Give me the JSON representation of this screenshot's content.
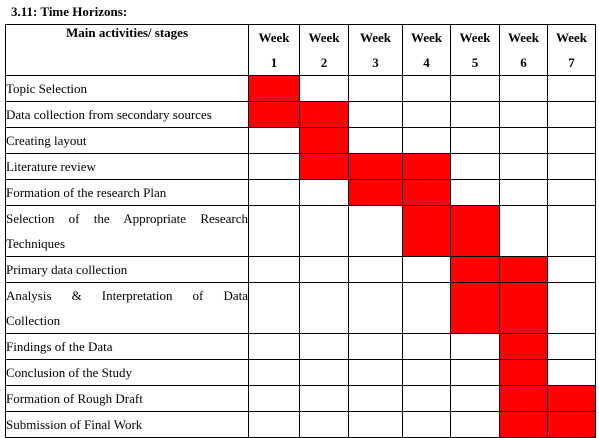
{
  "heading": "3.11: Time Horizons:",
  "table": {
    "activities_header": "Main activities/ stages",
    "weeks": [
      {
        "top": "Week",
        "num": "1"
      },
      {
        "top": "Week",
        "num": "2"
      },
      {
        "top": "Week",
        "num": "3"
      },
      {
        "top": "Week",
        "num": "4"
      },
      {
        "top": "Week",
        "num": "5"
      },
      {
        "top": "Week",
        "num": "6"
      },
      {
        "top": "Week",
        "num": "7"
      }
    ],
    "rows": [
      {
        "lines": [
          "Topic Selection"
        ],
        "weeks": [
          1
        ]
      },
      {
        "lines": [
          "Data collection from secondary sources"
        ],
        "weeks": [
          1,
          2
        ]
      },
      {
        "lines": [
          "Creating layout"
        ],
        "weeks": [
          2
        ]
      },
      {
        "lines": [
          "Literature review"
        ],
        "weeks": [
          2,
          3,
          4
        ]
      },
      {
        "lines": [
          "Formation of the research Plan"
        ],
        "weeks": [
          3,
          4
        ]
      },
      {
        "lines": [
          "Selection of the Appropriate Research",
          "Techniques"
        ],
        "weeks": [
          4,
          5
        ]
      },
      {
        "lines": [
          "Primary data collection"
        ],
        "weeks": [
          5,
          6
        ]
      },
      {
        "lines": [
          "Analysis & Interpretation of Data",
          "Collection"
        ],
        "weeks": [
          5,
          6
        ]
      },
      {
        "lines": [
          "Findings of the Data"
        ],
        "weeks": [
          6
        ]
      },
      {
        "lines": [
          "Conclusion of the Study"
        ],
        "weeks": [
          6
        ]
      },
      {
        "lines": [
          "Formation of Rough Draft"
        ],
        "weeks": [
          6,
          7
        ]
      },
      {
        "lines": [
          "Submission of Final Work"
        ],
        "weeks": [
          6,
          7
        ]
      }
    ],
    "highlight_color": "#fe0000"
  }
}
